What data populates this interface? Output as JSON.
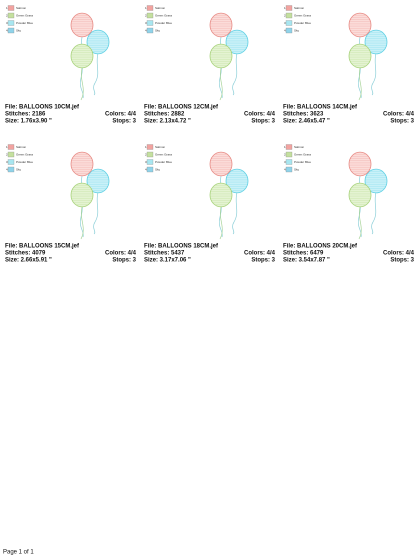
{
  "legend": [
    {
      "number": "1",
      "name": "Salmon",
      "color": "#f2a3a0"
    },
    {
      "number": "2",
      "name": "Green Grass",
      "color": "#c4e09e"
    },
    {
      "number": "3",
      "name": "Powder Blue",
      "color": "#a8e6f0"
    },
    {
      "number": "4",
      "name": "Sky",
      "color": "#8fd3ea"
    }
  ],
  "cells": [
    {
      "file": "File: BALLOONS 10CM.jef",
      "stitches": "Stitches: 2186",
      "colors": "Colors: 4/4",
      "size": "Size: 1.76x3.90 \"",
      "stops": "Stops: 3"
    },
    {
      "file": "File: BALLOONS 12CM.jef",
      "stitches": "Stitches: 2882",
      "colors": "Colors: 4/4",
      "size": "Size: 2.13x4.72 \"",
      "stops": "Stops: 3"
    },
    {
      "file": "File: BALLOONS 14CM.jef",
      "stitches": "Stitches: 3623",
      "colors": "Colors: 4/4",
      "size": "Size: 2.46x5.47 \"",
      "stops": "Stops: 3"
    },
    {
      "file": "File: BALLOONS 15CM.jef",
      "stitches": "Stitches: 4079",
      "colors": "Colors: 4/4",
      "size": "Size: 2.66x5.91 \"",
      "stops": "Stops: 3"
    },
    {
      "file": "File: BALLOONS 18CM.jef",
      "stitches": "Stitches: 5437",
      "colors": "Colors: 4/4",
      "size": "Size: 3.17x7.06 \"",
      "stops": "Stops: 3"
    },
    {
      "file": "File: BALLOONS 20CM.jef",
      "stitches": "Stitches: 6479",
      "colors": "Colors: 4/4",
      "size": "Size: 3.54x7.87 \"",
      "stops": "Stops: 3"
    }
  ],
  "footer": "Page 1 of 1"
}
